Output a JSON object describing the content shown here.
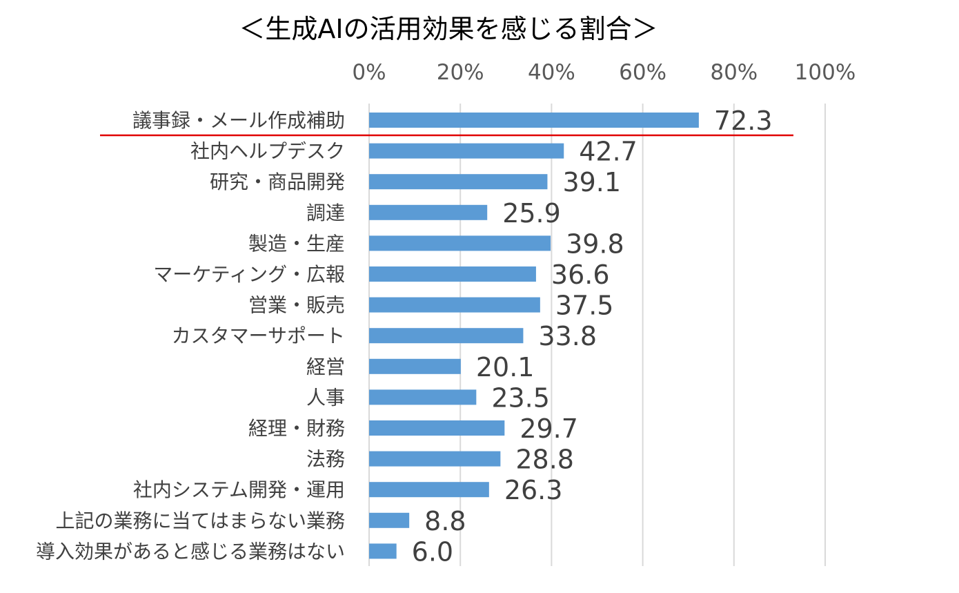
{
  "chart_data": {
    "type": "bar",
    "orientation": "horizontal",
    "title": "＜生成AIの活用効果を感じる割合＞",
    "xlim": [
      0,
      100
    ],
    "x_ticks": [
      "0%",
      "20%",
      "40%",
      "60%",
      "80%",
      "100%"
    ],
    "x_axis_position": "top",
    "grid": true,
    "categories": [
      "議事録・メール作成補助",
      "社内ヘルプデスク",
      "研究・商品開発",
      "調達",
      "製造・生産",
      "マーケティング・広報",
      "営業・販売",
      "カスタマーサポート",
      "経営",
      "人事",
      "経理・財務",
      "法務",
      "社内システム開発・運用",
      "上記の業務に当てはまらない業務",
      "導入効果があると感じる業務はない"
    ],
    "values": [
      72.3,
      42.7,
      39.1,
      25.9,
      39.8,
      36.6,
      37.5,
      33.8,
      20.1,
      23.5,
      29.7,
      28.8,
      26.3,
      8.8,
      6.0
    ],
    "value_labels": [
      "72.3",
      "42.7",
      "39.1",
      "25.9",
      "39.8",
      "36.6",
      "37.5",
      "33.8",
      "20.1",
      "23.5",
      "29.7",
      "28.8",
      "26.3",
      "8.8",
      "6.0"
    ],
    "highlight_category_index": 0,
    "colors": {
      "bar": "#5b9bd5",
      "grid": "#d9d9d9",
      "highlight_line": "#e00000"
    }
  }
}
